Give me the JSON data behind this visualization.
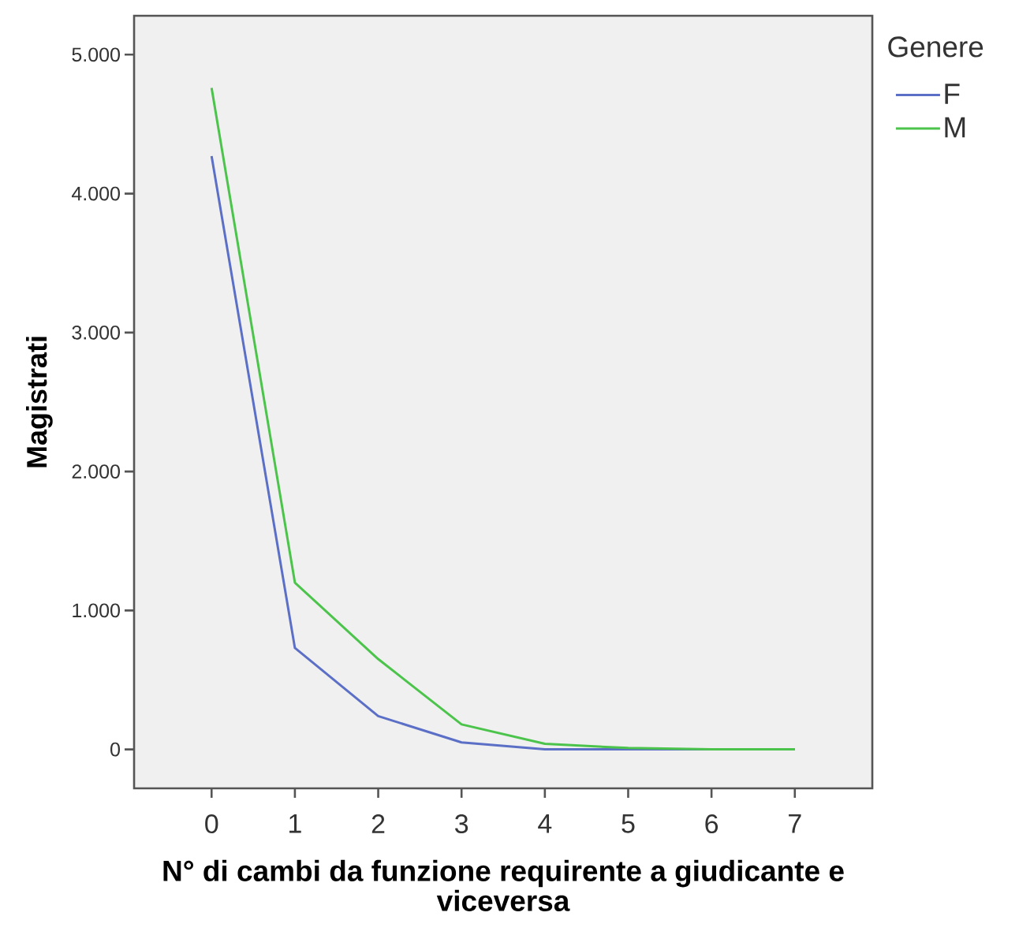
{
  "chart_data": {
    "type": "line",
    "xlabel": "N° di cambi da funzione requirente a giudicante e viceversa",
    "ylabel": "Magistrati",
    "legend_title": "Genere",
    "legend": "top right",
    "categories": [
      "0",
      "1",
      "2",
      "3",
      "4",
      "5",
      "6",
      "7"
    ],
    "series": [
      {
        "name": "F",
        "color": "#5b6fc6",
        "values": [
          4270,
          730,
          240,
          50,
          0,
          0,
          0,
          0
        ]
      },
      {
        "name": "M",
        "color": "#4cc44c",
        "values": [
          4760,
          1200,
          650,
          180,
          40,
          10,
          0,
          0
        ]
      }
    ],
    "ylim": [
      -280,
      5280
    ],
    "yticks": [
      0,
      {
        "value": 1000,
        "label": "1.000"
      },
      {
        "value": 2000,
        "label": "2.000"
      },
      {
        "value": 3000,
        "label": "3.000"
      },
      {
        "value": 4000,
        "label": "4.000"
      },
      {
        "value": 5000,
        "label": "5.000"
      }
    ]
  }
}
